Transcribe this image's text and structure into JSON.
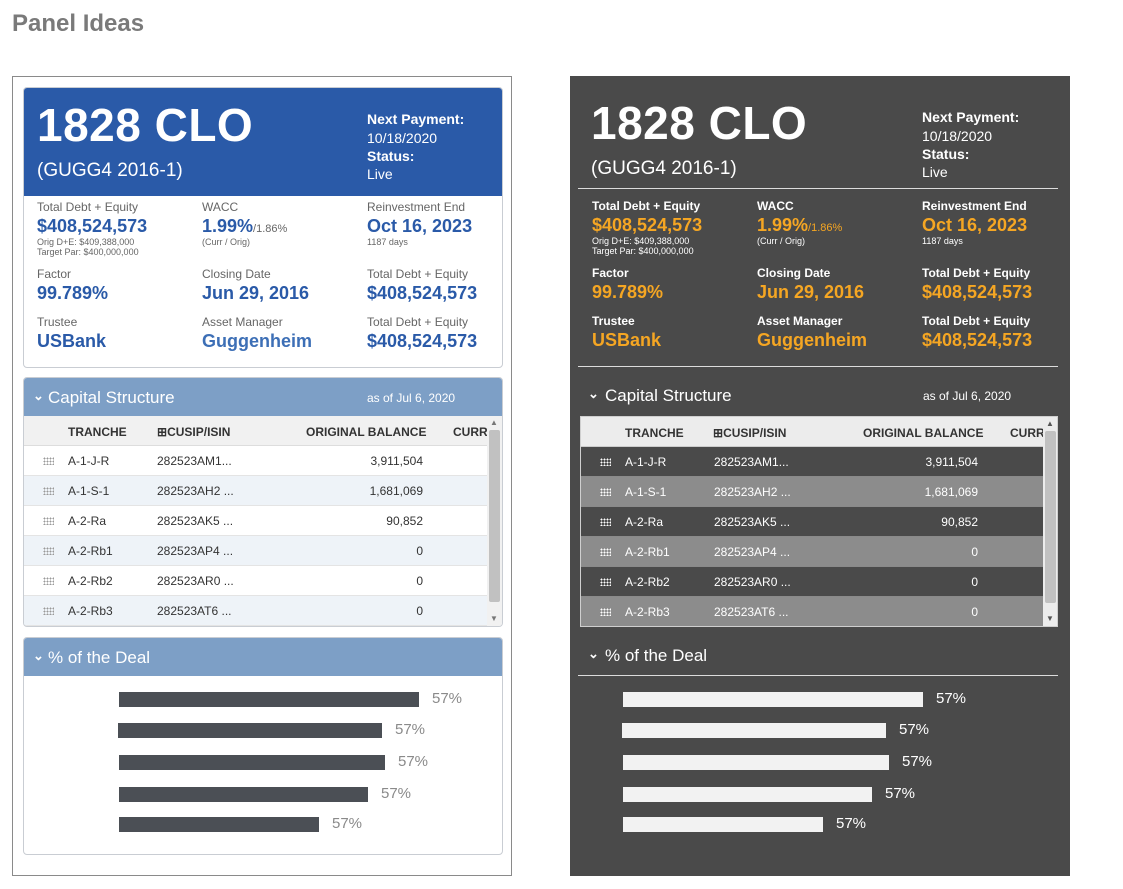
{
  "page": {
    "title": "Panel Ideas"
  },
  "deal": {
    "name": "1828 CLO",
    "code": "(GUGG4 2016-1)",
    "next_payment_label": "Next Payment:",
    "next_payment": "10/18/2020",
    "status_label": "Status:",
    "status": "Live"
  },
  "stats": {
    "total_debt": {
      "label": "Total Debt + Equity",
      "value": "$408,524,573",
      "sub1": "Orig D+E: $409,388,000",
      "sub2": "Target Par: $400,000,000"
    },
    "wacc": {
      "label": "WACC",
      "value": "1.99%",
      "orig": "/1.86%",
      "sub": "(Curr / Orig)"
    },
    "reinvestment_end": {
      "label": "Reinvestment End",
      "value": "Oct 16, 2023",
      "sub": "1187 days"
    },
    "factor": {
      "label": "Factor",
      "value": "99.789%"
    },
    "closing_date": {
      "label": "Closing Date",
      "value": "Jun 29, 2016"
    },
    "total_debt_2": {
      "label": "Total Debt + Equity",
      "value": "$408,524,573"
    },
    "trustee": {
      "label": "Trustee",
      "value": "USBank"
    },
    "asset_manager": {
      "label": "Asset Manager",
      "value": "Guggenheim"
    },
    "total_debt_3": {
      "label": "Total Debt + Equity",
      "value": "$408,524,573"
    }
  },
  "capital_structure": {
    "title": "Capital Structure",
    "as_of": "as of Jul 6, 2020",
    "columns": {
      "tranche": "TRANCHE",
      "cusip": "CUSIP/ISIN",
      "cusip_icon": "⊞",
      "original_balance": "ORIGINAL BALANCE",
      "curr": "CURR"
    },
    "rows": [
      {
        "tranche": "A-1-J-R",
        "cusip": "282523AM1...",
        "balance": "3,911,504"
      },
      {
        "tranche": "A-1-S-1",
        "cusip": "282523AH2 ...",
        "balance": "1,681,069"
      },
      {
        "tranche": "A-2-Ra",
        "cusip": "282523AK5 ...",
        "balance": "90,852"
      },
      {
        "tranche": "A-2-Rb1",
        "cusip": "282523AP4 ...",
        "balance": "0"
      },
      {
        "tranche": "A-2-Rb2",
        "cusip": "282523AR0 ...",
        "balance": "0"
      },
      {
        "tranche": "A-2-Rb3",
        "cusip": "282523AT6 ...",
        "balance": "0"
      }
    ]
  },
  "percent_of_deal": {
    "title": "% of the Deal",
    "bars": [
      {
        "label": "57%",
        "fraction": 1.0
      },
      {
        "label": "57%",
        "fraction": 0.88
      },
      {
        "label": "57%",
        "fraction": 0.885
      },
      {
        "label": "57%",
        "fraction": 0.83
      },
      {
        "label": "57%",
        "fraction": 0.665
      }
    ]
  },
  "icons": {
    "chevron": "chevron-down-icon",
    "grip": "drag-grip-icon",
    "expand": "expand-plus-icon"
  },
  "colors": {
    "light_header": "#2a5aa8",
    "light_section": "#7d9fc6",
    "dark_bg": "#4a4a4a",
    "dark_accent": "#f5a623"
  }
}
